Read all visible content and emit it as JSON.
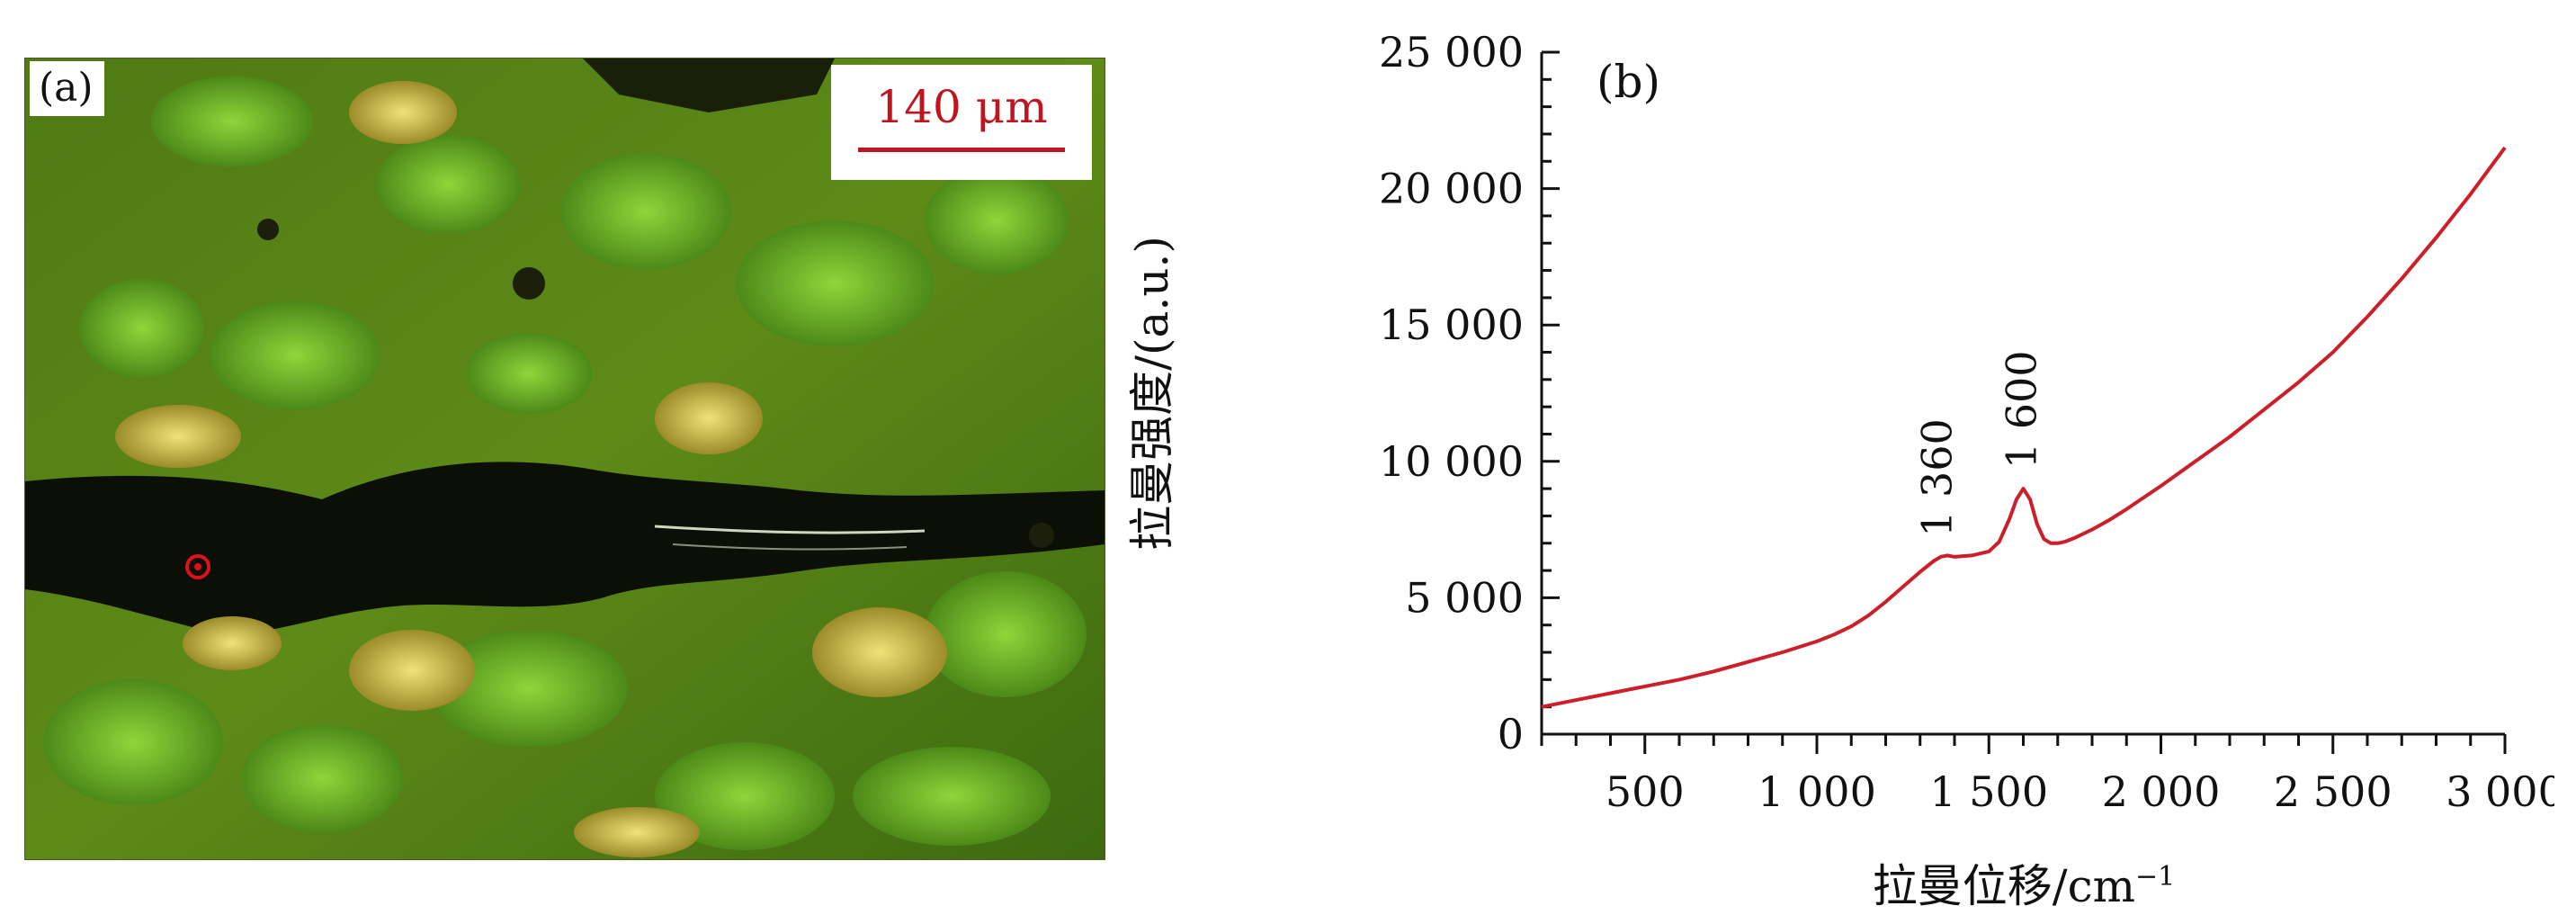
{
  "panel_a": {
    "label": "(a)",
    "scale_bar": "140 μm",
    "colors": {
      "accent": "#c0141e",
      "mineral_green": "#6fbf2a",
      "dark_band": "#0b0f06"
    },
    "marker_icon": "red-circle-marker-icon"
  },
  "chart_data": {
    "type": "line",
    "panel_label": "(b)",
    "xlabel": "拉曼位移/cm",
    "xlabel_sup": "−1",
    "ylabel": "拉曼强度/(a.u.)",
    "xlim": [
      200,
      3000
    ],
    "ylim": [
      0,
      25000
    ],
    "xticks": [
      500,
      1000,
      1500,
      2000,
      2500,
      3000
    ],
    "xtick_labels": [
      "500",
      "1 000",
      "1 500",
      "2 000",
      "2 500",
      "3 000"
    ],
    "yticks": [
      0,
      5000,
      10000,
      15000,
      20000,
      25000
    ],
    "ytick_labels": [
      "0",
      "5 000",
      "10 000",
      "15 000",
      "20 000",
      "25 000"
    ],
    "grid": false,
    "series": [
      {
        "color": "#cc1f2a",
        "x": [
          200,
          300,
          400,
          500,
          600,
          700,
          800,
          900,
          1000,
          1050,
          1100,
          1150,
          1200,
          1250,
          1300,
          1340,
          1360,
          1380,
          1400,
          1450,
          1500,
          1530,
          1560,
          1580,
          1600,
          1620,
          1640,
          1660,
          1680,
          1700,
          1720,
          1750,
          1800,
          1850,
          1900,
          2000,
          2100,
          2200,
          2300,
          2400,
          2500,
          2600,
          2700,
          2800,
          2900,
          3000
        ],
        "y": [
          1000,
          1250,
          1500,
          1750,
          2000,
          2300,
          2650,
          3000,
          3400,
          3650,
          3950,
          4350,
          4850,
          5400,
          5950,
          6350,
          6500,
          6550,
          6500,
          6550,
          6700,
          7050,
          7900,
          8600,
          9000,
          8600,
          7700,
          7150,
          7000,
          7000,
          7050,
          7200,
          7500,
          7850,
          8250,
          9100,
          10000,
          10900,
          11900,
          12900,
          14000,
          15300,
          16700,
          18200,
          19800,
          21500
        ]
      }
    ],
    "annotations": [
      "1 360",
      "1 600"
    ]
  }
}
